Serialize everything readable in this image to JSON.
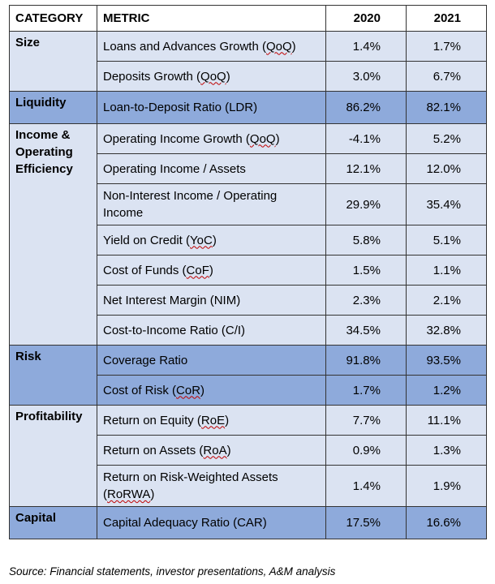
{
  "headers": {
    "category": "CATEGORY",
    "metric": "METRIC",
    "y2020": "2020",
    "y2021": "2021"
  },
  "groups": [
    {
      "category": "Size",
      "shade": "light",
      "rows": [
        {
          "pre": "Loans and Advances Growth (",
          "abbr": "QoQ",
          "post": ")",
          "v2020": "1.4%",
          "v2021": "1.7%"
        },
        {
          "pre": "Deposits Growth (",
          "abbr": "QoQ",
          "post": ")",
          "v2020": "3.0%",
          "v2021": "6.7%"
        }
      ]
    },
    {
      "category": "Liquidity",
      "shade": "dark",
      "rows": [
        {
          "pre": "Loan-to-Deposit Ratio (LDR)",
          "v2020": "86.2%",
          "v2021": "82.1%"
        }
      ]
    },
    {
      "category": "Income & Operating Efficiency",
      "shade": "light",
      "rows": [
        {
          "pre": "Operating Income Growth (",
          "abbr": "QoQ",
          "post": ")",
          "v2020": "-4.1%",
          "v2021": "5.2%"
        },
        {
          "pre": "Operating Income / Assets",
          "v2020": "12.1%",
          "v2021": "12.0%"
        },
        {
          "pre": "Non-Interest Income / Operating Income",
          "tall": true,
          "v2020": "29.9%",
          "v2021": "35.4%"
        },
        {
          "pre": "Yield on Credit (",
          "abbr": "YoC",
          "post": ")",
          "v2020": "5.8%",
          "v2021": "5.1%"
        },
        {
          "pre": "Cost of Funds (",
          "abbr": "CoF",
          "post": ")",
          "v2020": "1.5%",
          "v2021": "1.1%"
        },
        {
          "pre": "Net Interest Margin (NIM)",
          "v2020": "2.3%",
          "v2021": "2.1%"
        },
        {
          "pre": "Cost-to-Income Ratio (C/I)",
          "v2020": "34.5%",
          "v2021": "32.8%"
        }
      ]
    },
    {
      "category": "Risk",
      "shade": "dark",
      "rows": [
        {
          "pre": "Coverage Ratio",
          "v2020": "91.8%",
          "v2021": "93.5%"
        },
        {
          "pre": "Cost of Risk (",
          "abbr": "CoR",
          "post": ")",
          "v2020": "1.7%",
          "v2021": "1.2%"
        }
      ]
    },
    {
      "category": "Profitability",
      "shade": "light",
      "rows": [
        {
          "pre": "Return on Equity (",
          "abbr": "RoE",
          "post": ")",
          "v2020": "7.7%",
          "v2021": "11.1%"
        },
        {
          "pre": "Return on Assets (",
          "abbr": "RoA",
          "post": ")",
          "v2020": "0.9%",
          "v2021": "1.3%"
        },
        {
          "pre": "Return on Risk-Weighted Assets (",
          "abbr": "RoRWA",
          "post": ")",
          "tall": true,
          "v2020": "1.4%",
          "v2021": "1.9%"
        }
      ]
    },
    {
      "category": "Capital",
      "shade": "dark",
      "rows": [
        {
          "pre": "Capital Adequacy Ratio (CAR)",
          "v2020": "17.5%",
          "v2021": "16.6%"
        }
      ]
    }
  ],
  "source": "Source: Financial statements, investor presentations, A&M analysis"
}
